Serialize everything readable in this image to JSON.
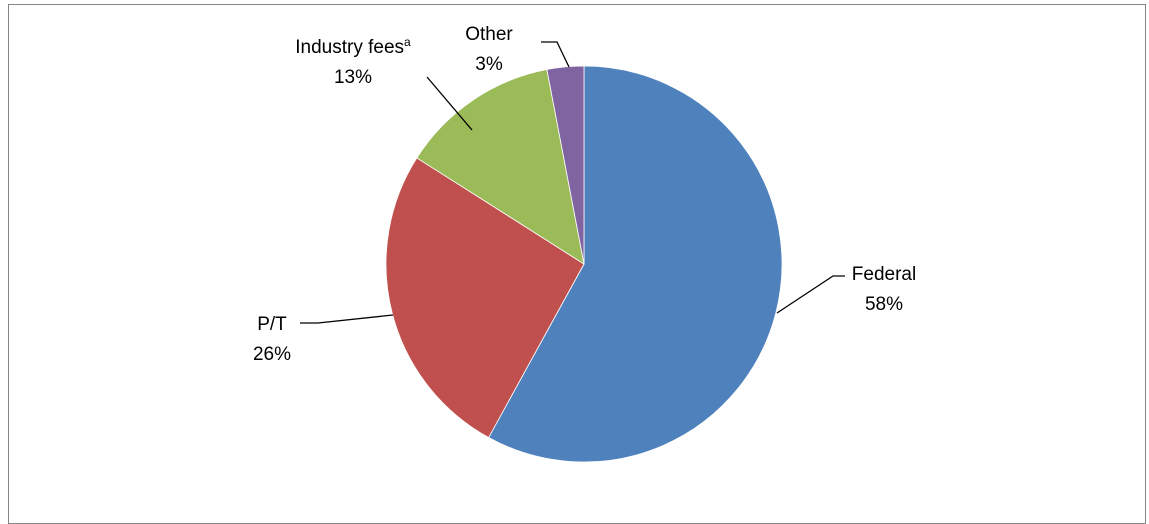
{
  "chart_data": {
    "type": "pie",
    "title": "",
    "slices": [
      {
        "label": "Federal",
        "value": 58,
        "value_label": "58%",
        "color": "#4F81BD"
      },
      {
        "label": "P/T",
        "value": 26,
        "value_label": "26%",
        "color": "#C0504D"
      },
      {
        "label": "Industry fees",
        "label_superscript": "a",
        "value": 13,
        "value_label": "13%",
        "color": "#9BBB59"
      },
      {
        "label": "Other",
        "value": 3,
        "value_label": "3%",
        "color": "#8064A2"
      }
    ],
    "start_angle": "12 o'clock",
    "direction": "clockwise",
    "legend": "none"
  }
}
